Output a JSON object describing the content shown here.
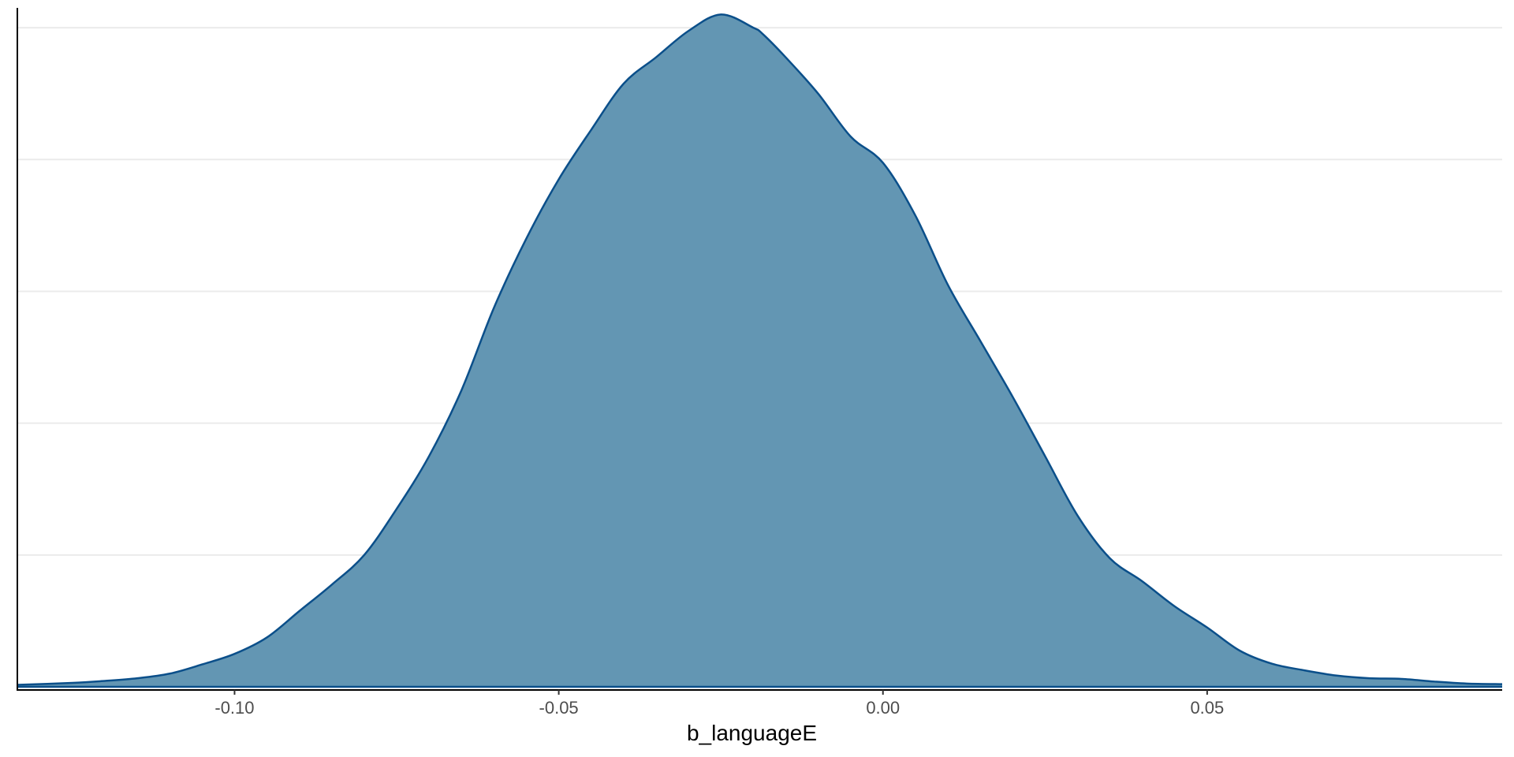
{
  "chart_data": {
    "type": "area",
    "title": "",
    "xlabel": "b_languageE",
    "ylabel": "",
    "xlim": [
      -0.1335,
      0.0955
    ],
    "ylim": [
      0,
      1.03
    ],
    "x_ticks": [
      -0.1,
      -0.05,
      0.0,
      0.05
    ],
    "x_tick_labels": [
      "-0.10",
      "-0.05",
      "0.00",
      "0.05"
    ],
    "y_gridlines": [
      0.2,
      0.4,
      0.6,
      0.8,
      1.0
    ],
    "y_ticks_shown": false,
    "grid": "horizontal-major",
    "legend": "none",
    "series": [
      {
        "x": [
          -0.1335,
          -0.125,
          -0.12,
          -0.115,
          -0.11,
          -0.105,
          -0.1,
          -0.095,
          -0.09,
          -0.085,
          -0.08,
          -0.075,
          -0.07,
          -0.065,
          -0.06,
          -0.055,
          -0.05,
          -0.045,
          -0.04,
          -0.035,
          -0.03,
          -0.025,
          -0.02,
          -0.0185,
          -0.015,
          -0.01,
          -0.005,
          0.0,
          0.005,
          0.01,
          0.015,
          0.02,
          0.025,
          0.03,
          0.035,
          0.04,
          0.045,
          0.05,
          0.055,
          0.06,
          0.065,
          0.07,
          0.075,
          0.08,
          0.085,
          0.09,
          0.0955
        ],
        "y": [
          0.003,
          0.006,
          0.009,
          0.013,
          0.02,
          0.034,
          0.05,
          0.075,
          0.115,
          0.155,
          0.2,
          0.27,
          0.35,
          0.45,
          0.575,
          0.68,
          0.77,
          0.845,
          0.915,
          0.955,
          0.995,
          1.02,
          1.0,
          0.99,
          0.955,
          0.9,
          0.835,
          0.795,
          0.715,
          0.61,
          0.525,
          0.44,
          0.35,
          0.26,
          0.195,
          0.16,
          0.122,
          0.09,
          0.055,
          0.035,
          0.025,
          0.017,
          0.013,
          0.012,
          0.008,
          0.005,
          0.004
        ]
      }
    ],
    "colors": {
      "fill": "#6396b3",
      "line": "#0b4f8a",
      "gridline": "#ebebeb",
      "axis": "#000000"
    }
  }
}
